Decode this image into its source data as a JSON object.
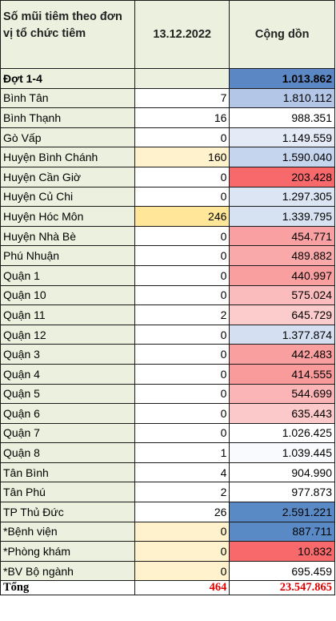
{
  "header": {
    "col1": "Số mũi tiêm theo đơn vị tổ chức tiêm",
    "col2": "13.12.2022",
    "col3": "Cộng dồn"
  },
  "rows": [
    {
      "name": "Đợt 1-4",
      "day": "",
      "total": "1.013.862",
      "name_bg": "#ebf1de",
      "day_bg": "#ebf1de",
      "total_bg": "#5b87c5",
      "bold": true
    },
    {
      "name": "Bình Tân",
      "day": "7",
      "total": "1.810.112",
      "name_bg": "#ebf1de",
      "day_bg": "#ffffff",
      "total_bg": "#b4c6e7"
    },
    {
      "name": "Bình Thạnh",
      "day": "16",
      "total": "988.351",
      "name_bg": "#ebf1de",
      "day_bg": "#ffffff",
      "total_bg": "#ffffff"
    },
    {
      "name": "Gò Vấp",
      "day": "0",
      "total": "1.149.559",
      "name_bg": "#ebf1de",
      "day_bg": "#ffffff",
      "total_bg": "#e4ebf6"
    },
    {
      "name": "Huyện Bình Chánh",
      "day": "160",
      "total": "1.590.040",
      "name_bg": "#ebf1de",
      "day_bg": "#fff2cc",
      "total_bg": "#c6d5ee"
    },
    {
      "name": "Huyện Cần Giờ",
      "day": "0",
      "total": "203.428",
      "name_bg": "#ebf1de",
      "day_bg": "#ffffff",
      "total_bg": "#f8696b"
    },
    {
      "name": "Huyện Củ Chi",
      "day": "0",
      "total": "1.297.305",
      "name_bg": "#ebf1de",
      "day_bg": "#ffffff",
      "total_bg": "#dce5f4"
    },
    {
      "name": "Huyện Hóc Môn",
      "day": "246",
      "total": "1.339.795",
      "name_bg": "#ebf1de",
      "day_bg": "#ffe699",
      "total_bg": "#d6e1f2"
    },
    {
      "name": "Huyện Nhà Bè",
      "day": "0",
      "total": "454.771",
      "name_bg": "#ebf1de",
      "day_bg": "#ffffff",
      "total_bg": "#f9a1a2"
    },
    {
      "name": "Phú Nhuận",
      "day": "0",
      "total": "489.882",
      "name_bg": "#ebf1de",
      "day_bg": "#ffffff",
      "total_bg": "#faa9aa"
    },
    {
      "name": "Quận 1",
      "day": "0",
      "total": "440.997",
      "name_bg": "#ebf1de",
      "day_bg": "#ffffff",
      "total_bg": "#f99fa0"
    },
    {
      "name": "Quận 10",
      "day": "0",
      "total": "575.024",
      "name_bg": "#ebf1de",
      "day_bg": "#ffffff",
      "total_bg": "#fbbcbd"
    },
    {
      "name": "Quận 11",
      "day": "2",
      "total": "645.729",
      "name_bg": "#ebf1de",
      "day_bg": "#ffffff",
      "total_bg": "#fccbcc"
    },
    {
      "name": "Quận 12",
      "day": "0",
      "total": "1.377.874",
      "name_bg": "#ebf1de",
      "day_bg": "#ffffff",
      "total_bg": "#d4dff1"
    },
    {
      "name": "Quận 3",
      "day": "0",
      "total": "442.483",
      "name_bg": "#ebf1de",
      "day_bg": "#ffffff",
      "total_bg": "#f99fa0"
    },
    {
      "name": "Quận 4",
      "day": "0",
      "total": "414.555",
      "name_bg": "#ebf1de",
      "day_bg": "#ffffff",
      "total_bg": "#f99a9b"
    },
    {
      "name": "Quận 5",
      "day": "0",
      "total": "544.699",
      "name_bg": "#ebf1de",
      "day_bg": "#ffffff",
      "total_bg": "#fbb5b6"
    },
    {
      "name": "Quận 6",
      "day": "0",
      "total": "635.443",
      "name_bg": "#ebf1de",
      "day_bg": "#ffffff",
      "total_bg": "#fcc9ca"
    },
    {
      "name": "Quận 7",
      "day": "0",
      "total": "1.026.425",
      "name_bg": "#ebf1de",
      "day_bg": "#ffffff",
      "total_bg": "#ffffff"
    },
    {
      "name": "Quận 8",
      "day": "1",
      "total": "1.039.445",
      "name_bg": "#ebf1de",
      "day_bg": "#ffffff",
      "total_bg": "#f8fafd"
    },
    {
      "name": "Tân Bình",
      "day": "4",
      "total": "904.990",
      "name_bg": "#ebf1de",
      "day_bg": "#ffffff",
      "total_bg": "#ffffff"
    },
    {
      "name": "Tân Phú",
      "day": "2",
      "total": "977.873",
      "name_bg": "#ebf1de",
      "day_bg": "#ffffff",
      "total_bg": "#ffffff"
    },
    {
      "name": "TP Thủ Đức",
      "day": "26",
      "total": "2.591.221",
      "name_bg": "#ebf1de",
      "day_bg": "#ffffff",
      "total_bg": "#5a8ac6"
    },
    {
      "name": "*Bệnh viện",
      "day": "0",
      "total": "887.711",
      "name_bg": "#ebf1de",
      "day_bg": "#fff2cc",
      "total_bg": "#5a8ac6"
    },
    {
      "name": "*Phòng khám",
      "day": "0",
      "total": "10.832",
      "name_bg": "#ebf1de",
      "day_bg": "#fff2cc",
      "total_bg": "#f8696b"
    },
    {
      "name": "*BV Bộ ngành",
      "day": "0",
      "total": "695.459",
      "name_bg": "#ebf1de",
      "day_bg": "#fff2cc",
      "total_bg": "#ffffff"
    }
  ],
  "total_row": {
    "label": "Tổng",
    "day": "464",
    "total": "23.547.865"
  }
}
